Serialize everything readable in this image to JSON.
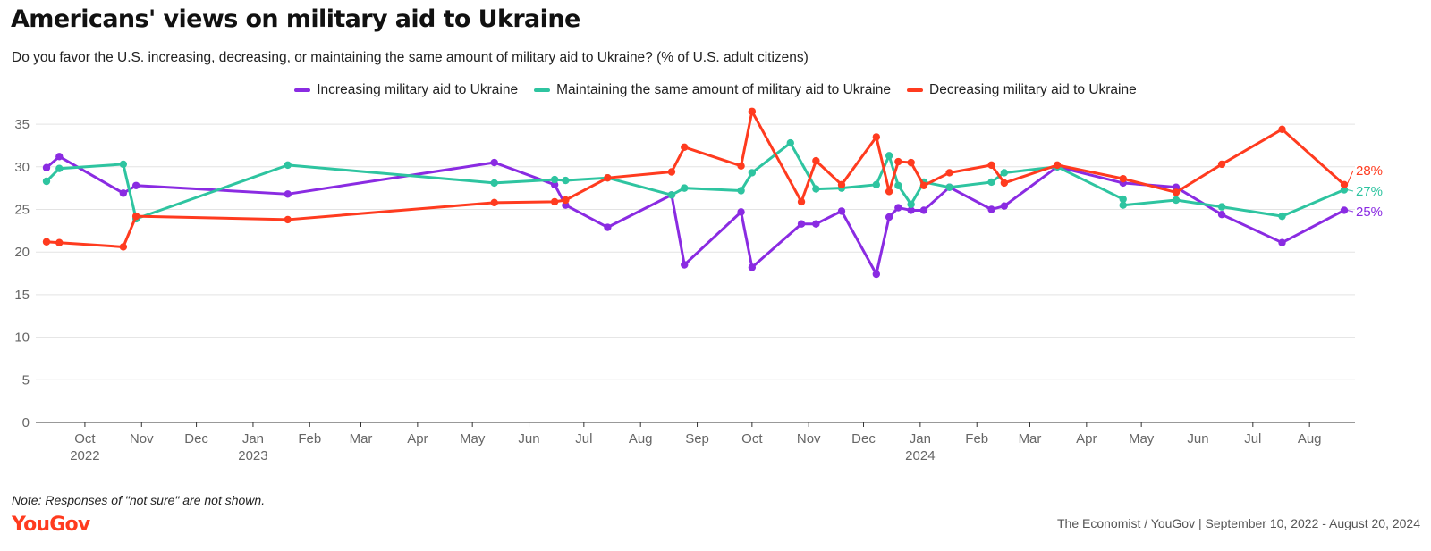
{
  "header": {
    "title": "Americans' views on military aid to Ukraine",
    "subtitle": "Do you favor the U.S. increasing, decreasing, or maintaining the same amount of military aid to Ukraine? (% of U.S. adult citizens)"
  },
  "legend": [
    {
      "label": "Increasing military aid to Ukraine",
      "color": "#8a2be2"
    },
    {
      "label": "Maintaining the same amount of military aid to Ukraine",
      "color": "#2ec4a0"
    },
    {
      "label": "Decreasing military aid to Ukraine",
      "color": "#ff3b1f"
    }
  ],
  "footer": {
    "note": "Note: Responses of \"not sure\" are not shown.",
    "logo": "YouGov",
    "source": "The Economist / YouGov | September 10, 2022 - August 20, 2024"
  },
  "chart_data": {
    "type": "line",
    "x_type": "date",
    "ylim": [
      0,
      37
    ],
    "yticks": [
      0,
      5,
      10,
      15,
      20,
      25,
      30,
      35
    ],
    "grid": "horizontal",
    "legend_position": "top-center",
    "x_tick_labels": [
      {
        "date": "2022-10-01",
        "label": "Oct",
        "year": "2022"
      },
      {
        "date": "2022-11-01",
        "label": "Nov"
      },
      {
        "date": "2022-12-01",
        "label": "Dec"
      },
      {
        "date": "2023-01-01",
        "label": "Jan",
        "year": "2023"
      },
      {
        "date": "2023-02-01",
        "label": "Feb"
      },
      {
        "date": "2023-03-01",
        "label": "Mar"
      },
      {
        "date": "2023-04-01",
        "label": "Apr"
      },
      {
        "date": "2023-05-01",
        "label": "May"
      },
      {
        "date": "2023-06-01",
        "label": "Jun"
      },
      {
        "date": "2023-07-01",
        "label": "Jul"
      },
      {
        "date": "2023-08-01",
        "label": "Aug"
      },
      {
        "date": "2023-09-01",
        "label": "Sep"
      },
      {
        "date": "2023-10-01",
        "label": "Oct"
      },
      {
        "date": "2023-11-01",
        "label": "Nov"
      },
      {
        "date": "2023-12-01",
        "label": "Dec"
      },
      {
        "date": "2024-01-01",
        "label": "Jan",
        "year": "2024"
      },
      {
        "date": "2024-02-01",
        "label": "Feb"
      },
      {
        "date": "2024-03-01",
        "label": "Mar"
      },
      {
        "date": "2024-04-01",
        "label": "Apr"
      },
      {
        "date": "2024-05-01",
        "label": "May"
      },
      {
        "date": "2024-06-01",
        "label": "Jun"
      },
      {
        "date": "2024-07-01",
        "label": "Jul"
      },
      {
        "date": "2024-08-01",
        "label": "Aug"
      }
    ],
    "series": [
      {
        "name": "Increasing military aid to Ukraine",
        "color": "#8a2be2",
        "end_label": "25%",
        "points": [
          [
            "2022-09-10",
            29.9
          ],
          [
            "2022-09-17",
            31.2
          ],
          [
            "2022-10-22",
            26.9
          ],
          [
            "2022-10-29",
            27.8
          ],
          [
            "2023-01-20",
            26.8
          ],
          [
            "2023-05-13",
            30.5
          ],
          [
            "2023-06-15",
            27.9
          ],
          [
            "2023-06-21",
            25.5
          ],
          [
            "2023-07-14",
            22.9
          ],
          [
            "2023-08-18",
            26.7
          ],
          [
            "2023-08-25",
            18.5
          ],
          [
            "2023-09-25",
            24.7
          ],
          [
            "2023-10-01",
            18.2
          ],
          [
            "2023-10-28",
            23.3
          ],
          [
            "2023-11-05",
            23.3
          ],
          [
            "2023-11-19",
            24.8
          ],
          [
            "2023-12-08",
            17.4
          ],
          [
            "2023-12-15",
            24.1
          ],
          [
            "2023-12-20",
            25.2
          ],
          [
            "2023-12-27",
            24.9
          ],
          [
            "2024-01-03",
            24.9
          ],
          [
            "2024-01-17",
            27.6
          ],
          [
            "2024-02-09",
            25.0
          ],
          [
            "2024-02-16",
            25.4
          ],
          [
            "2024-03-16",
            30.0
          ],
          [
            "2024-04-21",
            28.1
          ],
          [
            "2024-05-20",
            27.6
          ],
          [
            "2024-06-14",
            24.4
          ],
          [
            "2024-07-17",
            21.1
          ],
          [
            "2024-08-20",
            24.9
          ]
        ]
      },
      {
        "name": "Maintaining the same amount of military aid to Ukraine",
        "color": "#2ec4a0",
        "end_label": "27%",
        "points": [
          [
            "2022-09-10",
            28.3
          ],
          [
            "2022-09-17",
            29.8
          ],
          [
            "2022-10-22",
            30.3
          ],
          [
            "2022-10-29",
            23.9
          ],
          [
            "2023-01-20",
            30.2
          ],
          [
            "2023-05-13",
            28.1
          ],
          [
            "2023-06-15",
            28.5
          ],
          [
            "2023-06-21",
            28.4
          ],
          [
            "2023-07-14",
            28.7
          ],
          [
            "2023-08-18",
            26.7
          ],
          [
            "2023-08-25",
            27.5
          ],
          [
            "2023-09-25",
            27.2
          ],
          [
            "2023-10-01",
            29.3
          ],
          [
            "2023-10-22",
            32.8
          ],
          [
            "2023-11-05",
            27.4
          ],
          [
            "2023-11-19",
            27.5
          ],
          [
            "2023-12-08",
            27.9
          ],
          [
            "2023-12-15",
            31.3
          ],
          [
            "2023-12-20",
            27.8
          ],
          [
            "2023-12-27",
            25.6
          ],
          [
            "2024-01-03",
            28.2
          ],
          [
            "2024-01-17",
            27.6
          ],
          [
            "2024-02-09",
            28.2
          ],
          [
            "2024-02-16",
            29.3
          ],
          [
            "2024-03-16",
            30.0
          ],
          [
            "2024-04-21",
            26.2
          ],
          [
            "2024-04-21",
            25.5
          ],
          [
            "2024-05-20",
            26.1
          ],
          [
            "2024-06-14",
            25.3
          ],
          [
            "2024-07-17",
            24.2
          ],
          [
            "2024-08-20",
            27.3
          ]
        ]
      },
      {
        "name": "Decreasing military aid to Ukraine",
        "color": "#ff3b1f",
        "end_label": "28%",
        "points": [
          [
            "2022-09-10",
            21.2
          ],
          [
            "2022-09-17",
            21.1
          ],
          [
            "2022-10-22",
            20.6
          ],
          [
            "2022-10-29",
            24.2
          ],
          [
            "2023-01-20",
            23.8
          ],
          [
            "2023-05-13",
            25.8
          ],
          [
            "2023-06-15",
            25.9
          ],
          [
            "2023-06-21",
            26.1
          ],
          [
            "2023-07-14",
            28.7
          ],
          [
            "2023-08-18",
            29.4
          ],
          [
            "2023-08-25",
            32.3
          ],
          [
            "2023-09-25",
            30.1
          ],
          [
            "2023-10-01",
            36.5
          ],
          [
            "2023-10-28",
            25.9
          ],
          [
            "2023-11-05",
            30.7
          ],
          [
            "2023-11-19",
            27.9
          ],
          [
            "2023-12-08",
            33.5
          ],
          [
            "2023-12-15",
            27.1
          ],
          [
            "2023-12-20",
            30.6
          ],
          [
            "2023-12-27",
            30.5
          ],
          [
            "2024-01-03",
            27.8
          ],
          [
            "2024-01-17",
            29.3
          ],
          [
            "2024-02-09",
            30.2
          ],
          [
            "2024-02-16",
            28.1
          ],
          [
            "2024-03-16",
            30.2
          ],
          [
            "2024-04-21",
            28.6
          ],
          [
            "2024-05-20",
            27.0
          ],
          [
            "2024-06-14",
            30.3
          ],
          [
            "2024-07-17",
            34.4
          ],
          [
            "2024-08-20",
            27.9
          ]
        ]
      }
    ]
  }
}
